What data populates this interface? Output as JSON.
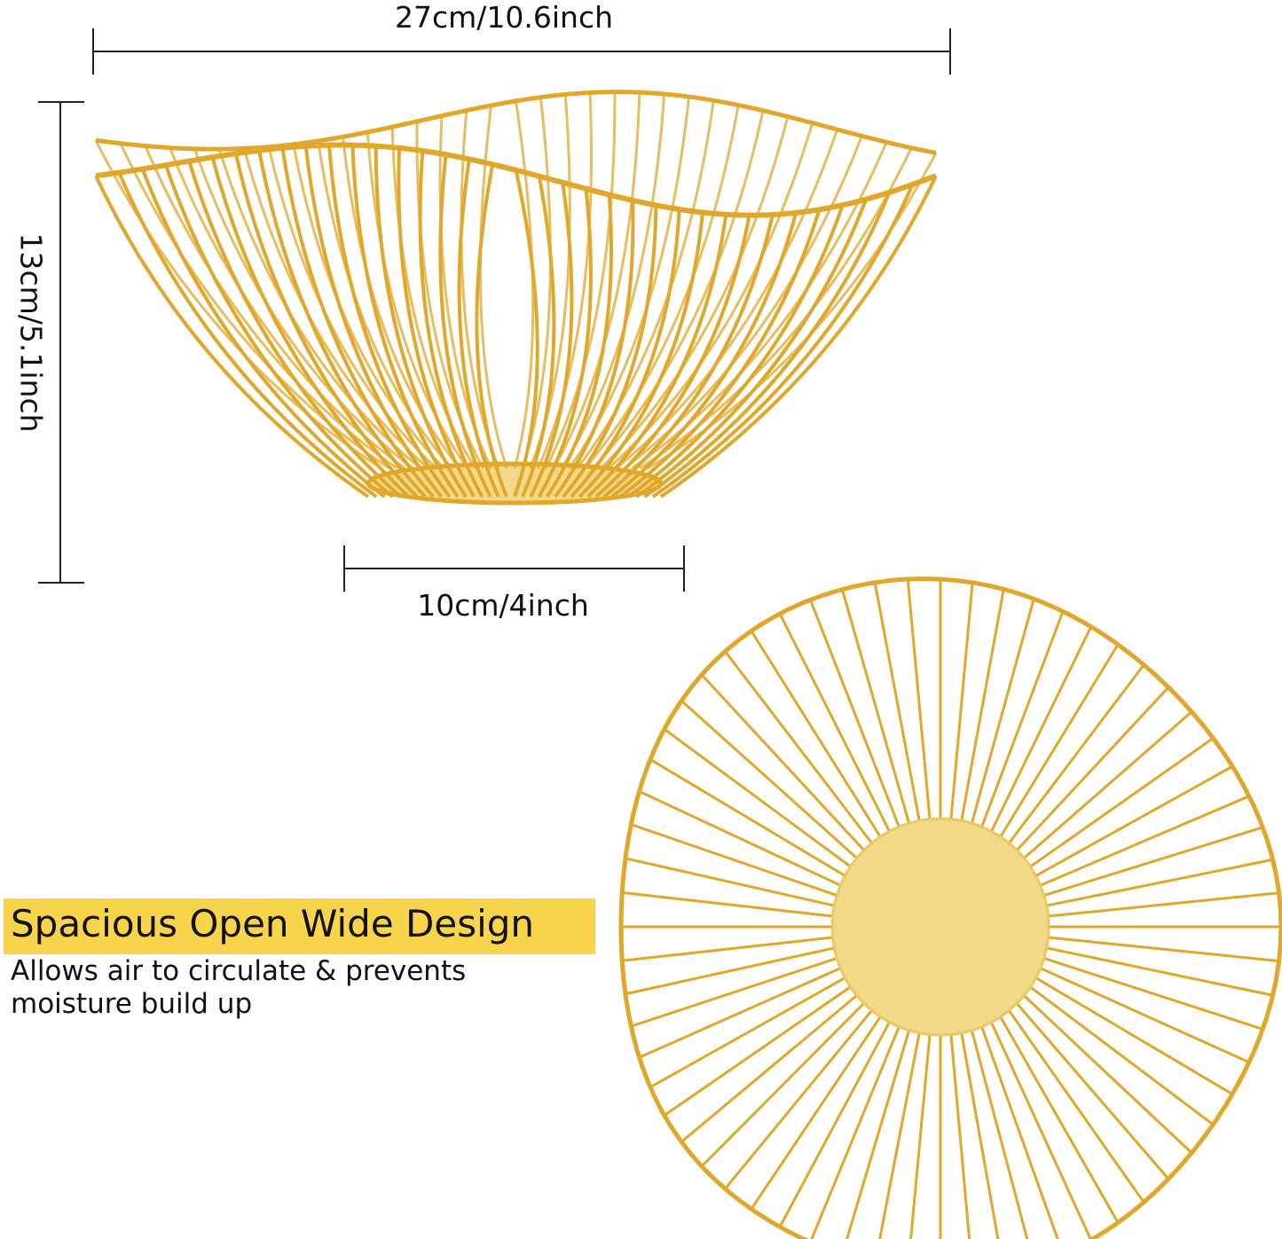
{
  "dimensions": {
    "width": "27cm/10.6inch",
    "height": "13cm/5.1inch",
    "base": "10cm/4inch"
  },
  "feature": {
    "title": "Spacious Open Wide Design",
    "description": "Allows air to circulate & prevents moisture build up"
  },
  "colors": {
    "gold": "#e0a72a",
    "gold_light": "#f2d98a",
    "banner": "#f7d44c"
  }
}
